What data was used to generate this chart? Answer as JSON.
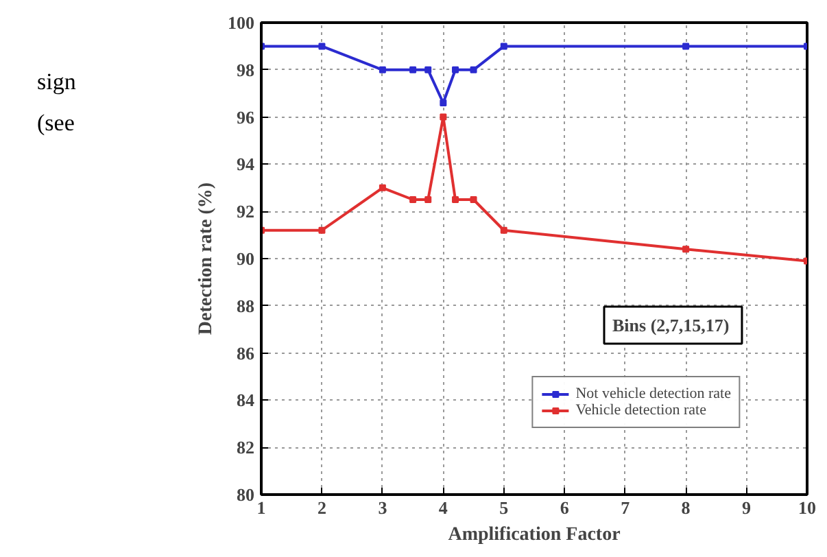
{
  "chart_data": {
    "type": "line",
    "xlabel": "Amplification Factor",
    "ylabel": "Detection rate (%)",
    "annotations": [
      "Bins  (2,7,15,17)",
      "sign",
      "(see"
    ],
    "xlim": [
      1,
      10
    ],
    "ylim": [
      80,
      100
    ],
    "xticks": [
      1,
      2,
      3,
      4,
      5,
      6,
      7,
      8,
      9,
      10
    ],
    "yticks": [
      80,
      82,
      84,
      86,
      88,
      90,
      92,
      94,
      96,
      98,
      100
    ],
    "grid": true,
    "legend": "bottom right",
    "marker": "square",
    "line_style": "solid",
    "series": [
      {
        "name": "Not vehicle detection rate",
        "color": "#2b2bd0",
        "x": [
          1,
          2,
          3,
          3.5,
          3.75,
          4,
          4.2,
          4.5,
          5,
          8,
          10
        ],
        "values": [
          99,
          99,
          98,
          98,
          98,
          96.6,
          98,
          98,
          99,
          99,
          99
        ]
      },
      {
        "name": "Vehicle detection rate",
        "color": "#e03030",
        "x": [
          1,
          2,
          3,
          3.5,
          3.75,
          4,
          4.2,
          4.5,
          5,
          8,
          10
        ],
        "values": [
          91.2,
          91.2,
          93,
          92.5,
          92.5,
          96,
          92.5,
          92.5,
          91.2,
          90.4,
          89.9
        ]
      }
    ]
  }
}
